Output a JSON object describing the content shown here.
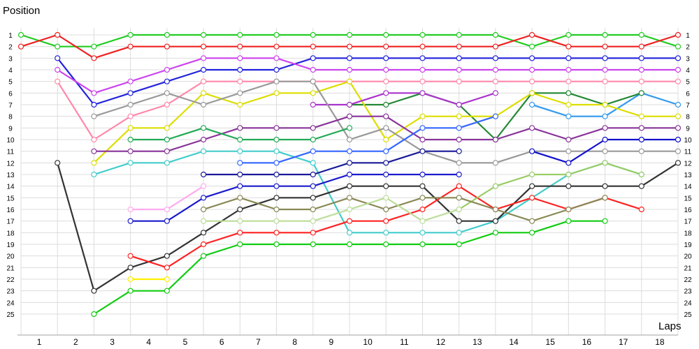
{
  "chart_data": {
    "type": "line",
    "title": "",
    "ylabel": "Position",
    "xlabel": "Laps",
    "x_ticks": [
      "1",
      "2",
      "3",
      "4",
      "5",
      "6",
      "7",
      "8",
      "9",
      "10",
      "11",
      "12",
      "13",
      "14",
      "15",
      "16",
      "17",
      "18"
    ],
    "y_ticks": [
      1,
      2,
      3,
      4,
      5,
      6,
      7,
      8,
      9,
      10,
      11,
      12,
      13,
      14,
      15,
      16,
      17,
      18,
      19,
      20,
      21,
      22,
      23,
      24,
      25
    ],
    "ylim": [
      1,
      25
    ],
    "y_inverted": true,
    "grid": true,
    "legend": "none",
    "x": [
      0,
      1,
      2,
      3,
      4,
      5,
      6,
      7,
      8,
      9,
      10,
      11,
      12,
      13,
      14,
      15,
      16,
      17,
      18
    ],
    "series": [
      {
        "color": "#22cc22",
        "values": [
          1,
          2,
          2,
          1,
          1,
          1,
          1,
          1,
          1,
          1,
          1,
          1,
          1,
          1,
          2,
          1,
          1,
          1,
          2
        ]
      },
      {
        "color": "#ee2222",
        "values": [
          2,
          1,
          3,
          2,
          2,
          2,
          2,
          2,
          2,
          2,
          2,
          2,
          2,
          2,
          1,
          2,
          2,
          2,
          1
        ]
      },
      {
        "color": "#2222dd",
        "values": [
          null,
          3,
          7,
          6,
          5,
          4,
          4,
          4,
          3,
          3,
          3,
          3,
          3,
          3,
          3,
          3,
          3,
          3,
          3
        ]
      },
      {
        "color": "#cc44ee",
        "values": [
          null,
          4,
          6,
          5,
          4,
          3,
          3,
          3,
          4,
          4,
          4,
          4,
          4,
          4,
          4,
          4,
          4,
          4,
          4
        ]
      },
      {
        "color": "#ff88aa",
        "values": [
          null,
          5,
          10,
          8,
          7,
          5,
          5,
          5,
          5,
          5,
          5,
          5,
          5,
          5,
          5,
          5,
          5,
          5,
          5
        ]
      },
      {
        "color": "#3399ee",
        "values": [
          null,
          null,
          null,
          null,
          null,
          null,
          null,
          null,
          null,
          null,
          null,
          null,
          null,
          null,
          7,
          8,
          8,
          6,
          7
        ]
      },
      {
        "color": "#228833",
        "values": [
          null,
          null,
          null,
          null,
          null,
          null,
          null,
          null,
          null,
          7,
          7,
          6,
          7,
          10,
          6,
          6,
          7,
          6,
          null
        ]
      },
      {
        "color": "#dddd00",
        "values": [
          null,
          null,
          12,
          9,
          9,
          6,
          7,
          6,
          6,
          5,
          10,
          8,
          8,
          8,
          6,
          7,
          7,
          8,
          8
        ]
      },
      {
        "color": "#aa33cc",
        "values": [
          null,
          null,
          null,
          null,
          null,
          null,
          null,
          null,
          7,
          7,
          6,
          6,
          7,
          6,
          null,
          null,
          null,
          null,
          null
        ]
      },
      {
        "color": "#999999",
        "values": [
          null,
          null,
          8,
          7,
          6,
          7,
          6,
          5,
          5,
          10,
          9,
          11,
          12,
          12,
          11,
          11,
          11,
          11,
          11
        ]
      },
      {
        "color": "#883399",
        "values": [
          null,
          null,
          11,
          11,
          11,
          10,
          9,
          9,
          9,
          8,
          8,
          10,
          10,
          10,
          9,
          10,
          9,
          9,
          9
        ]
      },
      {
        "color": "#22aa55",
        "values": [
          null,
          null,
          null,
          10,
          10,
          9,
          10,
          10,
          10,
          9,
          null,
          null,
          null,
          null,
          null,
          null,
          null,
          null,
          null
        ]
      },
      {
        "color": "#1111cc",
        "values": [
          null,
          null,
          null,
          null,
          null,
          null,
          null,
          null,
          null,
          null,
          null,
          null,
          null,
          null,
          11,
          12,
          10,
          10,
          10
        ]
      },
      {
        "color": "#44cccc",
        "values": [
          null,
          null,
          13,
          12,
          12,
          11,
          11,
          11,
          12,
          18,
          18,
          18,
          18,
          17,
          15,
          13,
          12,
          13,
          null
        ]
      },
      {
        "color": "#3366ff",
        "values": [
          null,
          null,
          null,
          null,
          null,
          null,
          12,
          12,
          11,
          11,
          11,
          9,
          9,
          8,
          null,
          null,
          null,
          null,
          null
        ]
      },
      {
        "color": "#1a1a99",
        "values": [
          null,
          null,
          null,
          null,
          null,
          13,
          13,
          13,
          13,
          12,
          12,
          11,
          11,
          null,
          null,
          null,
          null,
          null,
          null
        ]
      },
      {
        "color": "#333333",
        "values": [
          null,
          12,
          23,
          21,
          20,
          18,
          16,
          15,
          15,
          14,
          14,
          14,
          17,
          17,
          14,
          14,
          14,
          14,
          12
        ]
      },
      {
        "color": "#ff2222",
        "values": [
          null,
          null,
          null,
          20,
          21,
          19,
          18,
          18,
          18,
          17,
          17,
          16,
          14,
          16,
          15,
          16,
          15,
          16,
          null
        ]
      },
      {
        "color": "#99cc66",
        "values": [
          null,
          null,
          null,
          null,
          null,
          null,
          null,
          null,
          null,
          null,
          null,
          null,
          16,
          14,
          13,
          13,
          12,
          13,
          null
        ]
      },
      {
        "color": "#888855",
        "values": [
          null,
          null,
          null,
          null,
          null,
          16,
          15,
          16,
          16,
          15,
          16,
          15,
          15,
          16,
          17,
          16,
          15,
          null,
          null
        ]
      },
      {
        "color": "#bbdd99",
        "values": [
          null,
          null,
          null,
          null,
          null,
          17,
          17,
          17,
          17,
          16,
          15,
          17,
          16,
          null,
          null,
          null,
          null,
          null,
          null
        ]
      },
      {
        "color": "#11cc11",
        "values": [
          null,
          null,
          25,
          23,
          23,
          20,
          19,
          19,
          19,
          19,
          19,
          19,
          19,
          18,
          18,
          17,
          17,
          null,
          null
        ]
      },
      {
        "color": "#ffee00",
        "values": [
          null,
          null,
          null,
          22,
          22,
          null,
          null,
          null,
          null,
          null,
          null,
          null,
          null,
          null,
          null,
          null,
          null,
          null,
          null
        ]
      },
      {
        "color": "#ffaaee",
        "values": [
          null,
          null,
          null,
          16,
          16,
          14,
          null,
          null,
          null,
          null,
          null,
          null,
          null,
          null,
          null,
          null,
          null,
          null,
          null
        ]
      },
      {
        "color": "#1a1acc",
        "values": [
          null,
          null,
          null,
          17,
          17,
          15,
          14,
          14,
          14,
          13,
          13,
          13,
          13,
          null,
          null,
          null,
          null,
          null,
          null
        ]
      }
    ]
  }
}
